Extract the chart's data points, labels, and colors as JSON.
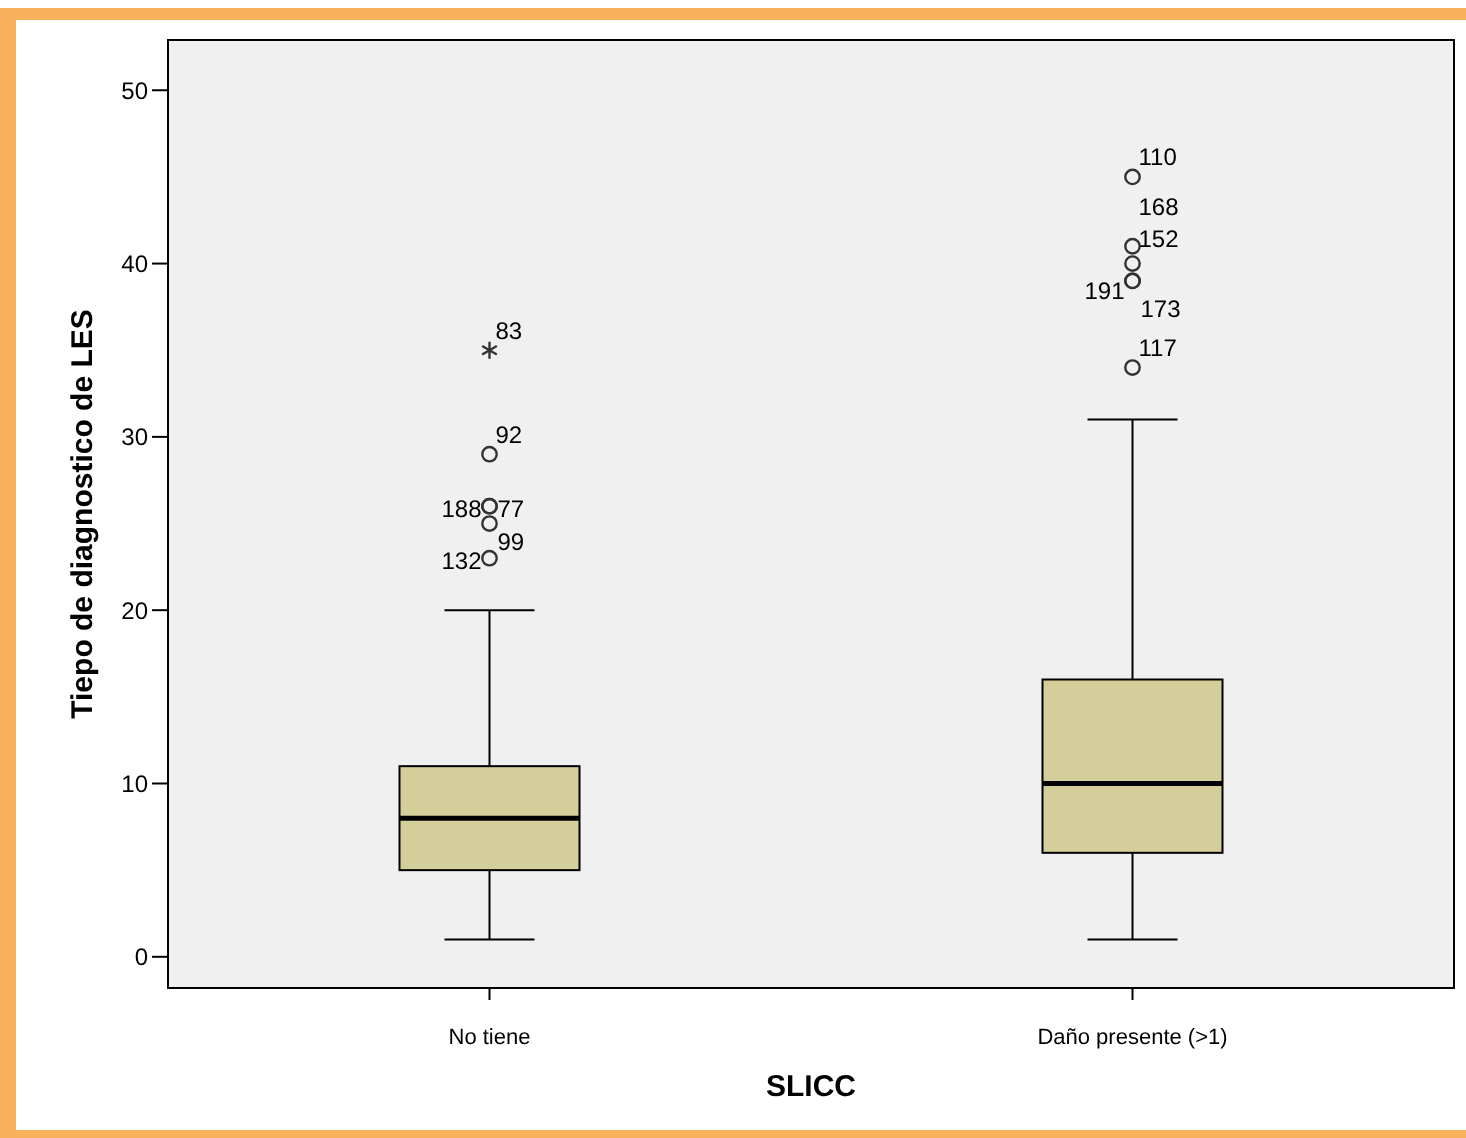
{
  "chart_data": {
    "type": "box",
    "xlabel": "SLICC",
    "ylabel": "Tiepo de diagnostico de LES",
    "categories": [
      "No tiene",
      "Daño presente (>1)"
    ],
    "series": [
      {
        "color": "#d3ce9a",
        "boxes": [
          {
            "low": 1,
            "q1": 5,
            "median": 8,
            "q3": 11,
            "high": 20
          },
          {
            "low": 1,
            "q1": 6,
            "median": 10,
            "q3": 16,
            "high": 31
          }
        ]
      },
      {
        "type": "scatter",
        "marker": "circle",
        "color": "#333333",
        "x": [
          "No tiene",
          "No tiene",
          "No tiene",
          "No tiene",
          "No tiene",
          "Daño presente (>1)",
          "Daño presente (>1)",
          "Daño presente (>1)",
          "Daño presente (>1)",
          "Daño presente (>1)",
          "Daño presente (>1)"
        ],
        "values": [
          23,
          25,
          26,
          26,
          29,
          34,
          39,
          39,
          40,
          41,
          45
        ]
      },
      {
        "type": "scatter",
        "marker": "cross",
        "color": "#333333",
        "x": [
          "No tiene"
        ],
        "values": [
          35
        ]
      }
    ],
    "ylim": [
      -1.8,
      52.9
    ],
    "yticks": [
      0,
      10,
      20,
      30,
      40,
      50
    ],
    "annotations": [
      {
        "text": "83",
        "x": "No tiene",
        "y": 35
      },
      {
        "text": "92",
        "x": "No tiene",
        "y": 29
      },
      {
        "text": "188",
        "x": "No tiene",
        "y": 26
      },
      {
        "text": "77",
        "x": "No tiene",
        "y": 26
      },
      {
        "text": "99",
        "x": "No tiene",
        "y": 25
      },
      {
        "text": "132",
        "x": "No tiene",
        "y": 23
      },
      {
        "text": "110",
        "x": "Daño presente (>1)",
        "y": 45
      },
      {
        "text": "168",
        "x": "Daño presente (>1)",
        "y": 41
      },
      {
        "text": "152",
        "x": "Daño presente (>1)",
        "y": 41
      },
      {
        "text": "191",
        "x": "Daño presente (>1)",
        "y": 39
      },
      {
        "text": "173",
        "x": "Daño presente (>1)",
        "y": 39
      },
      {
        "text": "117",
        "x": "Daño presente (>1)",
        "y": 34
      }
    ]
  }
}
